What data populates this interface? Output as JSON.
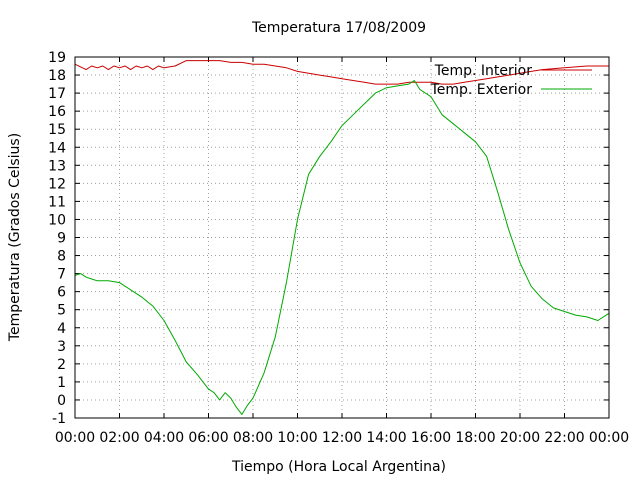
{
  "chart_data": {
    "type": "line",
    "title": "Temperatura 17/08/2009",
    "xlabel": "Tiempo (Hora Local Argentina)",
    "ylabel": "Temperatura (Grados Celsius)",
    "xlim": [
      0,
      24
    ],
    "ylim": [
      -1,
      19
    ],
    "x_ticks": [
      0,
      2,
      4,
      6,
      8,
      10,
      12,
      14,
      16,
      18,
      20,
      22,
      24
    ],
    "x_tick_labels": [
      "00:00",
      "02:00",
      "04:00",
      "06:00",
      "08:00",
      "10:00",
      "12:00",
      "14:00",
      "16:00",
      "18:00",
      "20:00",
      "22:00",
      "00:00"
    ],
    "y_ticks": [
      -1,
      0,
      1,
      2,
      3,
      4,
      5,
      6,
      7,
      8,
      9,
      10,
      11,
      12,
      13,
      14,
      15,
      16,
      17,
      18,
      19
    ],
    "y_tick_labels": [
      "-1",
      "0",
      "1",
      "2",
      "3",
      "4",
      "5",
      "6",
      "7",
      "8",
      "9",
      "10",
      "11",
      "12",
      "13",
      "14",
      "15",
      "16",
      "17",
      "18",
      "19"
    ],
    "grid": true,
    "legend_position": "top-right",
    "series": [
      {
        "name": "Temp. Interior",
        "color": "#cc0000",
        "x": [
          0,
          0.5,
          0.75,
          1,
          1.25,
          1.5,
          1.75,
          2,
          2.25,
          2.5,
          2.75,
          3,
          3.25,
          3.5,
          3.75,
          4,
          4.5,
          5,
          5.5,
          6,
          6.5,
          7,
          7.5,
          8,
          8.5,
          9,
          9.5,
          10,
          10.5,
          11,
          11.5,
          12,
          12.5,
          13,
          13.5,
          14,
          14.5,
          15,
          15.5,
          16,
          16.5,
          17,
          17.5,
          18,
          18.5,
          19,
          19.5,
          20,
          20.5,
          21,
          22,
          23,
          24
        ],
        "y": [
          18.6,
          18.3,
          18.5,
          18.4,
          18.5,
          18.3,
          18.5,
          18.4,
          18.5,
          18.3,
          18.5,
          18.4,
          18.5,
          18.3,
          18.5,
          18.4,
          18.5,
          18.8,
          18.8,
          18.8,
          18.8,
          18.7,
          18.7,
          18.6,
          18.6,
          18.5,
          18.4,
          18.2,
          18.1,
          18.0,
          17.9,
          17.8,
          17.7,
          17.6,
          17.5,
          17.5,
          17.5,
          17.6,
          17.6,
          17.6,
          17.5,
          17.5,
          17.6,
          17.7,
          17.8,
          17.9,
          18.0,
          18.1,
          18.2,
          18.3,
          18.4,
          18.5,
          18.5
        ]
      },
      {
        "name": "Temp. Exterior",
        "color": "#00aa00",
        "x": [
          0,
          0.25,
          0.5,
          0.75,
          1,
          1.5,
          2,
          2.5,
          3,
          3.5,
          4,
          4.5,
          5,
          5.5,
          6,
          6.25,
          6.5,
          6.75,
          7,
          7.25,
          7.5,
          7.75,
          8,
          8.5,
          9,
          9.5,
          10,
          10.5,
          11,
          11.5,
          12,
          12.5,
          13,
          13.5,
          14,
          14.5,
          15,
          15.25,
          15.5,
          16,
          16.5,
          17,
          17.5,
          18,
          18.5,
          19,
          19.5,
          20,
          20.5,
          21,
          21.5,
          22,
          22.5,
          23,
          23.5,
          24
        ],
        "y": [
          6.9,
          7.0,
          6.8,
          6.7,
          6.6,
          6.6,
          6.5,
          6.1,
          5.7,
          5.2,
          4.4,
          3.3,
          2.1,
          1.4,
          0.6,
          0.4,
          0.0,
          0.4,
          0.1,
          -0.4,
          -0.8,
          -0.3,
          0.1,
          1.5,
          3.5,
          6.5,
          10.0,
          12.5,
          13.5,
          14.3,
          15.2,
          15.8,
          16.4,
          17.0,
          17.3,
          17.4,
          17.5,
          17.7,
          17.2,
          16.8,
          15.8,
          15.3,
          14.8,
          14.3,
          13.5,
          11.5,
          9.4,
          7.6,
          6.3,
          5.6,
          5.1,
          4.9,
          4.7,
          4.6,
          4.4,
          4.8
        ]
      }
    ]
  }
}
